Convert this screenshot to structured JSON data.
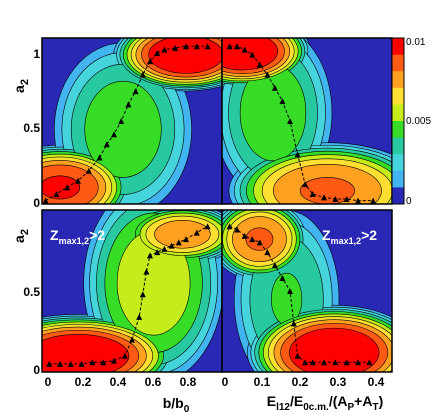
{
  "chart_data": {
    "type": "heatmap",
    "ylabel": "a",
    "ylabel_sub": "2",
    "colorbar": {
      "ticks": [
        "0.01",
        "0.005",
        "0"
      ],
      "colors": [
        "#ff0000",
        "#ff5a14",
        "#ffa020",
        "#ffe032",
        "#c6ec1c",
        "#37dc26",
        "#28c8a0",
        "#46d4dc",
        "#42b4f0",
        "#2828b4"
      ]
    },
    "panels": [
      {
        "id": "top-left",
        "x_var": "b/b0",
        "xlim": [
          0,
          1.0
        ],
        "ylim": [
          0,
          1.0
        ],
        "y_ticks": [
          "0",
          "0.5",
          "1"
        ],
        "annotation": "",
        "ridge": {
          "x": [
            0.02,
            0.08,
            0.14,
            0.2,
            0.26,
            0.32,
            0.36,
            0.4,
            0.44,
            0.48,
            0.52,
            0.56,
            0.6,
            0.64,
            0.68,
            0.74,
            0.8,
            0.86,
            0.92
          ],
          "y": [
            0.02,
            0.06,
            0.1,
            0.14,
            0.2,
            0.28,
            0.36,
            0.42,
            0.5,
            0.6,
            0.68,
            0.78,
            0.86,
            0.91,
            0.93,
            0.94,
            0.95,
            0.95,
            0.95
          ]
        }
      },
      {
        "id": "top-right",
        "x_var": "E_l12/E_0c.m./(A_P+A_T)",
        "xlim": [
          0,
          0.45
        ],
        "ylim": [
          0,
          1.0
        ],
        "annotation": "",
        "ridge": {
          "x": [
            0.02,
            0.04,
            0.06,
            0.08,
            0.1,
            0.12,
            0.14,
            0.16,
            0.18,
            0.2,
            0.22,
            0.24,
            0.27,
            0.3,
            0.33,
            0.36,
            0.4
          ],
          "y": [
            0.95,
            0.95,
            0.93,
            0.9,
            0.84,
            0.78,
            0.7,
            0.62,
            0.5,
            0.3,
            0.12,
            0.06,
            0.04,
            0.03,
            0.03,
            0.02,
            0.02
          ]
        }
      },
      {
        "id": "bottom-left",
        "x_var": "b/b0",
        "xlim": [
          0,
          1.0
        ],
        "ylim": [
          0,
          1.0
        ],
        "x_ticks": [
          "0",
          "0.2",
          "0.4",
          "0.6",
          "0.8"
        ],
        "y_ticks": [
          "0",
          "0.5",
          "1"
        ],
        "annotation": "Zmax1,2>2",
        "ridge": {
          "x": [
            0.04,
            0.1,
            0.16,
            0.22,
            0.28,
            0.34,
            0.4,
            0.46,
            0.5,
            0.54,
            0.56,
            0.58,
            0.6,
            0.64,
            0.68,
            0.72,
            0.76,
            0.8,
            0.86,
            0.92
          ],
          "y": [
            0.05,
            0.05,
            0.05,
            0.05,
            0.06,
            0.06,
            0.07,
            0.1,
            0.2,
            0.34,
            0.48,
            0.62,
            0.72,
            0.74,
            0.76,
            0.78,
            0.8,
            0.82,
            0.86,
            0.9
          ]
        }
      },
      {
        "id": "bottom-right",
        "x_var": "E_l12/E_0c.m./(A_P+A_T)",
        "xlim": [
          0,
          0.45
        ],
        "ylim": [
          0,
          1.0
        ],
        "x_ticks": [
          "0",
          "0.1",
          "0.2",
          "0.3",
          "0.4"
        ],
        "annotation": "Zmax1,2>2",
        "ridge": {
          "x": [
            0.02,
            0.04,
            0.06,
            0.08,
            0.1,
            0.12,
            0.14,
            0.16,
            0.18,
            0.19,
            0.2,
            0.22,
            0.24,
            0.27,
            0.3,
            0.33,
            0.36,
            0.39
          ],
          "y": [
            0.9,
            0.88,
            0.84,
            0.82,
            0.8,
            0.74,
            0.66,
            0.58,
            0.5,
            0.3,
            0.1,
            0.06,
            0.06,
            0.06,
            0.06,
            0.06,
            0.06,
            0.06
          ]
        }
      }
    ],
    "x_axis_labels": {
      "left": {
        "main": "b/b",
        "sub": "0"
      },
      "right": {
        "p1": "E",
        "s1": "l12",
        "p2": "/E",
        "s2": "0c.m.",
        "p3": "/(A",
        "s3": "P",
        "p4": "+A",
        "s4": "T",
        "p5": ")"
      }
    }
  }
}
